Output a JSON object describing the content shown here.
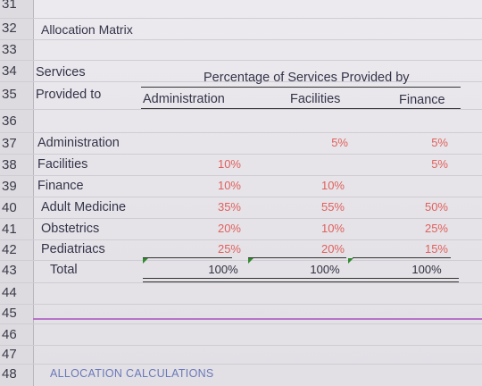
{
  "row_numbers": [
    "31",
    "32",
    "33",
    "34",
    "35",
    "36",
    "37",
    "38",
    "39",
    "40",
    "41",
    "42",
    "43",
    "44",
    "45",
    "46",
    "47",
    "48"
  ],
  "matrix_title": "Allocation Matrix",
  "headers": {
    "services": "Services",
    "provided_to": "Provided to",
    "percentage_header": "Percentage of Services Provided by",
    "col_administration": "Administration",
    "col_facilities": "Facilities",
    "col_finance": "Finance"
  },
  "rows": [
    {
      "label": "Administration",
      "administration": "",
      "facilities": "5%",
      "finance": "5%"
    },
    {
      "label": "Facilities",
      "administration": "10%",
      "facilities": "",
      "finance": "5%"
    },
    {
      "label": "Finance",
      "administration": "10%",
      "facilities": "10%",
      "finance": ""
    },
    {
      "label": "Adult Medicine",
      "administration": "35%",
      "facilities": "55%",
      "finance": "50%"
    },
    {
      "label": "Obstetrics",
      "administration": "20%",
      "facilities": "10%",
      "finance": "25%"
    },
    {
      "label": "Pediatriacs",
      "administration": "25%",
      "facilities": "20%",
      "finance": "15%"
    }
  ],
  "total": {
    "label": "Total",
    "administration": "100%",
    "facilities": "100%",
    "finance": "100%"
  },
  "allocation_calculations": "ALLOCATION CALCULATIONS",
  "colors": {
    "percent_text": "#e0605e",
    "separator": "#b774c8",
    "section_title": "#6a78b8",
    "error_marker": "#2e8b2e"
  }
}
